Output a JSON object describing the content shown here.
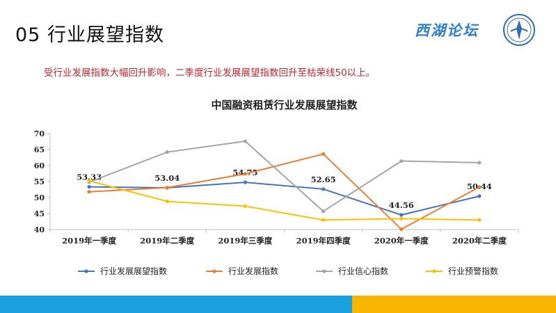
{
  "header": {
    "title": "05 行业展望指数",
    "brand": "西湖论坛",
    "subtitle": "受行业发展指数大幅回升影响，二季度行业发展展望指数回升至枯荣线50以上。"
  },
  "colors": {
    "brand_blue": "#2f7fd0",
    "subtitle_red": "#c0272d",
    "band_blue": "#1ba0e0",
    "band_yellow": "#f7b500"
  },
  "chart_data": {
    "type": "line",
    "title": "中国融资租赁行业发展展望指数",
    "categories": [
      "2019年一季度",
      "2019年二季度",
      "2019年三季度",
      "2019年四季度",
      "2020年一季度",
      "2020年二季度"
    ],
    "ylim": [
      40,
      70
    ],
    "yticks": [
      40,
      45,
      50,
      55,
      60,
      65,
      70
    ],
    "grid": false,
    "legend_position": "bottom",
    "series": [
      {
        "name": "行业发展展望指数",
        "color": "#4472c4",
        "values": [
          53.33,
          53.04,
          54.75,
          52.65,
          44.56,
          50.44
        ],
        "data_labels": [
          "53.33",
          "53.04",
          "54.75",
          "52.65",
          "44.56",
          "50.44"
        ]
      },
      {
        "name": "行业发展指数",
        "color": "#ed7d31",
        "values": [
          51.8,
          53.1,
          57.4,
          63.6,
          40.1,
          53.3
        ]
      },
      {
        "name": "行业信心指数",
        "color": "#a5a5a5",
        "values": [
          54.8,
          64.2,
          67.6,
          45.7,
          61.4,
          60.9
        ]
      },
      {
        "name": "行业预警指数",
        "color": "#ffc000",
        "values": [
          55.2,
          48.8,
          47.3,
          43.0,
          43.4,
          43.0
        ]
      }
    ]
  }
}
